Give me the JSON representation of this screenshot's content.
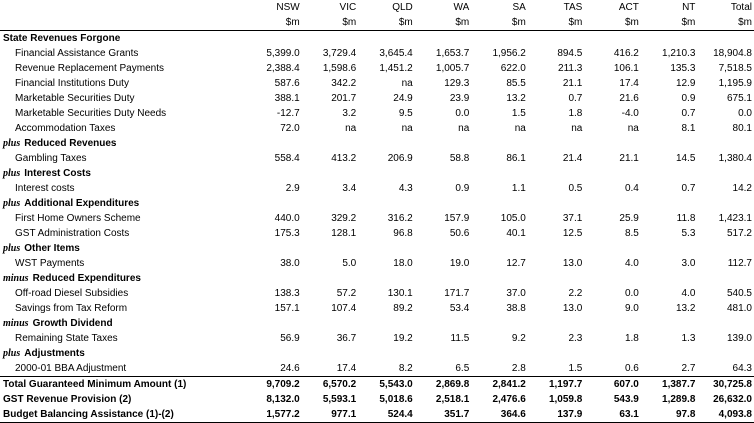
{
  "columns": [
    "NSW",
    "VIC",
    "QLD",
    "WA",
    "SA",
    "TAS",
    "ACT",
    "NT",
    "Total"
  ],
  "unit": "$m",
  "rows": [
    {
      "type": "section",
      "prefix": "",
      "label": "State Revenues Forgone"
    },
    {
      "type": "item",
      "label": "Financial Assistance Grants",
      "values": [
        "5,399.0",
        "3,729.4",
        "3,645.4",
        "1,653.7",
        "1,956.2",
        "894.5",
        "416.2",
        "1,210.3",
        "18,904.8"
      ]
    },
    {
      "type": "item",
      "label": "Revenue Replacement Payments",
      "values": [
        "2,388.4",
        "1,598.6",
        "1,451.2",
        "1,005.7",
        "622.0",
        "211.3",
        "106.1",
        "135.3",
        "7,518.5"
      ]
    },
    {
      "type": "item",
      "label": "Financial Institutions Duty",
      "values": [
        "587.6",
        "342.2",
        "na",
        "129.3",
        "85.5",
        "21.1",
        "17.4",
        "12.9",
        "1,195.9"
      ]
    },
    {
      "type": "item",
      "label": "Marketable Securities Duty",
      "values": [
        "388.1",
        "201.7",
        "24.9",
        "23.9",
        "13.2",
        "0.7",
        "21.6",
        "0.9",
        "675.1"
      ]
    },
    {
      "type": "item",
      "label": "Marketable Securities Duty Needs",
      "values": [
        "-12.7",
        "3.2",
        "9.5",
        "0.0",
        "1.5",
        "1.8",
        "-4.0",
        "0.7",
        "0.0"
      ]
    },
    {
      "type": "item",
      "label": "Accommodation Taxes",
      "values": [
        "72.0",
        "na",
        "na",
        "na",
        "na",
        "na",
        "na",
        "8.1",
        "80.1"
      ]
    },
    {
      "type": "section",
      "prefix": "plus",
      "label": "Reduced Revenues"
    },
    {
      "type": "item",
      "label": "Gambling Taxes",
      "values": [
        "558.4",
        "413.2",
        "206.9",
        "58.8",
        "86.1",
        "21.4",
        "21.1",
        "14.5",
        "1,380.4"
      ]
    },
    {
      "type": "section",
      "prefix": "plus",
      "label": "Interest Costs"
    },
    {
      "type": "item",
      "label": "Interest costs",
      "values": [
        "2.9",
        "3.4",
        "4.3",
        "0.9",
        "1.1",
        "0.5",
        "0.4",
        "0.7",
        "14.2"
      ]
    },
    {
      "type": "section",
      "prefix": "plus",
      "label": "Additional Expenditures"
    },
    {
      "type": "item",
      "label": "First Home Owners Scheme",
      "values": [
        "440.0",
        "329.2",
        "316.2",
        "157.9",
        "105.0",
        "37.1",
        "25.9",
        "11.8",
        "1,423.1"
      ]
    },
    {
      "type": "item",
      "label": "GST Administration Costs",
      "values": [
        "175.3",
        "128.1",
        "96.8",
        "50.6",
        "40.1",
        "12.5",
        "8.5",
        "5.3",
        "517.2"
      ]
    },
    {
      "type": "section",
      "prefix": "plus",
      "label": "Other Items"
    },
    {
      "type": "item",
      "label": "WST Payments",
      "values": [
        "38.0",
        "5.0",
        "18.0",
        "19.0",
        "12.7",
        "13.0",
        "4.0",
        "3.0",
        "112.7"
      ]
    },
    {
      "type": "section",
      "prefix": "minus",
      "label": "Reduced Expenditures"
    },
    {
      "type": "item",
      "label": "Off-road Diesel Subsidies",
      "values": [
        "138.3",
        "57.2",
        "130.1",
        "171.7",
        "37.0",
        "2.2",
        "0.0",
        "4.0",
        "540.5"
      ]
    },
    {
      "type": "item",
      "label": "Savings from Tax Reform",
      "values": [
        "157.1",
        "107.4",
        "89.2",
        "53.4",
        "38.8",
        "13.0",
        "9.0",
        "13.2",
        "481.0"
      ]
    },
    {
      "type": "section",
      "prefix": "minus",
      "label": "Growth Dividend"
    },
    {
      "type": "item",
      "label": "Remaining State Taxes",
      "values": [
        "56.9",
        "36.7",
        "19.2",
        "11.5",
        "9.2",
        "2.3",
        "1.8",
        "1.3",
        "139.0"
      ]
    },
    {
      "type": "section",
      "prefix": "plus",
      "label": "Adjustments"
    },
    {
      "type": "item",
      "label": "2000-01 BBA Adjustment",
      "values": [
        "24.6",
        "17.4",
        "8.2",
        "6.5",
        "2.8",
        "1.5",
        "0.6",
        "2.7",
        "64.3"
      ]
    },
    {
      "type": "total",
      "label": "Total Guaranteed Minimum Amount (1)",
      "values": [
        "9,709.2",
        "6,570.2",
        "5,543.0",
        "2,869.8",
        "2,841.2",
        "1,197.7",
        "607.0",
        "1,387.7",
        "30,725.8"
      ]
    },
    {
      "type": "total",
      "label": "GST Revenue Provision (2)",
      "values": [
        "8,132.0",
        "5,593.1",
        "5,018.6",
        "2,518.1",
        "2,476.6",
        "1,059.8",
        "543.9",
        "1,289.8",
        "26,632.0"
      ]
    },
    {
      "type": "total",
      "label": "Budget Balancing Assistance (1)-(2)",
      "values": [
        "1,577.2",
        "977.1",
        "524.4",
        "351.7",
        "364.6",
        "137.9",
        "63.1",
        "97.8",
        "4,093.8"
      ]
    }
  ]
}
